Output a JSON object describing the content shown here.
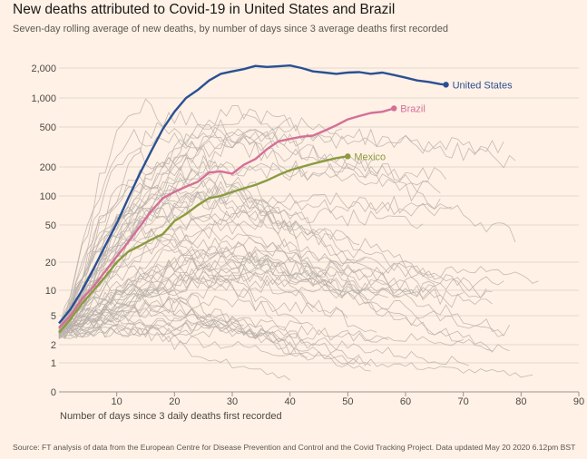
{
  "header": {
    "title": "New deaths attributed to Covid-19 in United States and Brazil",
    "subtitle": "Seven-day rolling average of new deaths, by number of days since 3 average deaths first recorded"
  },
  "footer": {
    "source": "Source: FT analysis of data from the European Centre for Disease Prevention and Control and the Covid Tracking Project. Data updated May 20 2020 6.12pm BST"
  },
  "colors": {
    "background": "#fff1e5",
    "grid": "#e3d6cb",
    "other_countries": "#b8b0aa",
    "united_states": "#2a5094",
    "brazil": "#d46f98",
    "mexico": "#8a9b3f"
  },
  "chart_data": {
    "type": "line",
    "xlabel": "Number of days since 3 daily deaths first recorded",
    "ylabel": "",
    "x_scale": "linear",
    "y_scale": "log",
    "xlim": [
      0,
      90
    ],
    "ylim": [
      0,
      2500
    ],
    "x_ticks": [
      10,
      20,
      30,
      40,
      50,
      60,
      70,
      80,
      90
    ],
    "x_tick_labels": [
      "10",
      "20",
      "30",
      "40",
      "50",
      "60",
      "70",
      "80",
      "90"
    ],
    "y_ticks": [
      0,
      1,
      2,
      5,
      10,
      20,
      50,
      100,
      200,
      500,
      1000,
      2000
    ],
    "y_tick_labels": [
      "0",
      "1",
      "2",
      "5",
      "10",
      "20",
      "50",
      "100",
      "200",
      "500",
      "1,000",
      "2,000"
    ],
    "grid": true,
    "highlighted_series": [
      {
        "name": "United States",
        "color_key": "united_states",
        "x": [
          0,
          2,
          4,
          6,
          8,
          10,
          12,
          14,
          16,
          18,
          20,
          22,
          24,
          26,
          28,
          30,
          32,
          34,
          36,
          38,
          40,
          42,
          44,
          46,
          48,
          50,
          52,
          54,
          56,
          58,
          60,
          62,
          64,
          66,
          67
        ],
        "values": [
          4,
          6,
          10,
          17,
          30,
          52,
          95,
          170,
          290,
          480,
          720,
          1000,
          1200,
          1500,
          1750,
          1850,
          1950,
          2100,
          2050,
          2080,
          2120,
          2000,
          1850,
          1800,
          1750,
          1800,
          1820,
          1750,
          1800,
          1700,
          1600,
          1500,
          1450,
          1380,
          1360
        ]
      },
      {
        "name": "Brazil",
        "color_key": "brazil",
        "x": [
          0,
          2,
          4,
          6,
          8,
          10,
          12,
          14,
          16,
          18,
          20,
          22,
          24,
          26,
          28,
          30,
          32,
          34,
          36,
          38,
          40,
          42,
          44,
          46,
          48,
          50,
          52,
          54,
          56,
          58
        ],
        "values": [
          3.5,
          5,
          8,
          11,
          16,
          23,
          33,
          48,
          70,
          95,
          110,
          125,
          140,
          175,
          180,
          170,
          210,
          240,
          300,
          360,
          380,
          400,
          410,
          460,
          520,
          600,
          650,
          700,
          720,
          780
        ]
      },
      {
        "name": "Mexico",
        "color_key": "mexico",
        "x": [
          0,
          2,
          4,
          6,
          8,
          10,
          12,
          14,
          16,
          18,
          20,
          22,
          24,
          26,
          28,
          30,
          32,
          34,
          36,
          38,
          40,
          42,
          44,
          46,
          48,
          50
        ],
        "values": [
          3,
          4.5,
          7,
          10,
          14,
          20,
          26,
          30,
          35,
          40,
          55,
          65,
          80,
          95,
          100,
          110,
          120,
          130,
          145,
          165,
          185,
          200,
          215,
          230,
          245,
          255
        ]
      }
    ]
  }
}
